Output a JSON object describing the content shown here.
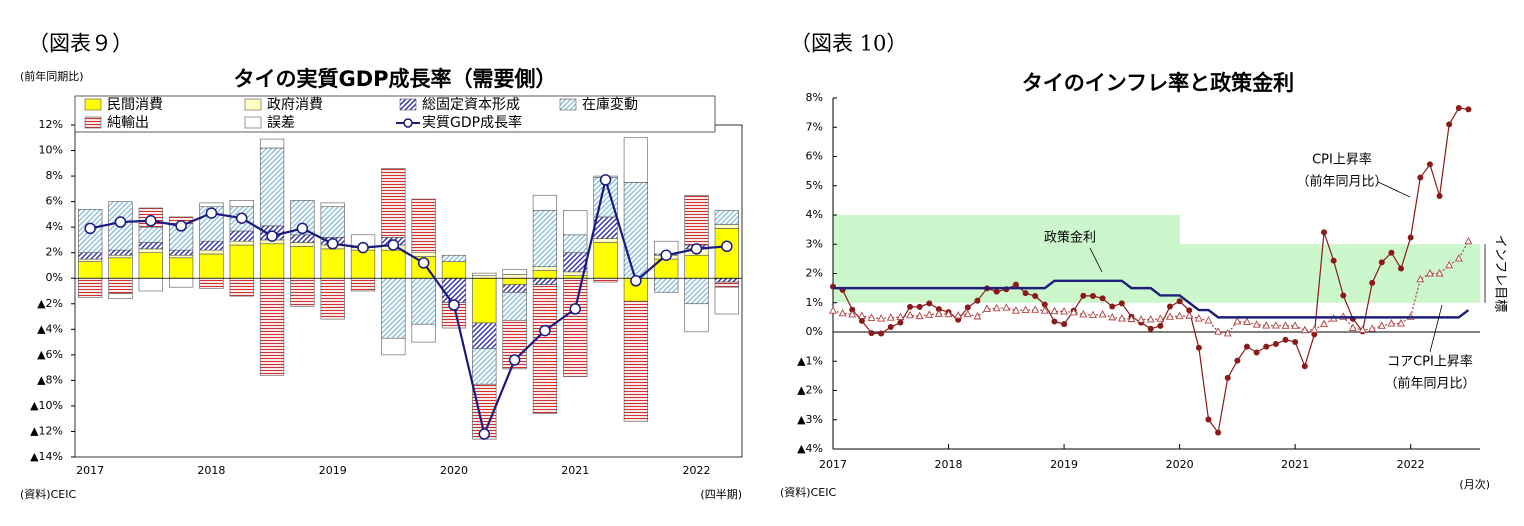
{
  "chart_data": [
    {
      "type": "bar",
      "stacked": true,
      "figure": "（図表９）",
      "title": "タイの実質GDP成長率（需要側）",
      "ylabel": "(前年同期比)",
      "xlabel": "(四半期)",
      "source": "(資料)CEIC",
      "legend": "top",
      "categories": [
        "2017",
        null,
        null,
        null,
        "2018",
        null,
        null,
        null,
        "2019",
        null,
        null,
        null,
        "2020",
        null,
        null,
        null,
        "2021",
        null,
        null,
        null,
        "2022",
        null
      ],
      "ylim": [
        -14,
        12
      ],
      "yticks": [
        {
          "value": 12,
          "label": "12%"
        },
        {
          "value": 10,
          "label": "10%"
        },
        {
          "value": 8,
          "label": "8%"
        },
        {
          "value": 6,
          "label": "6%"
        },
        {
          "value": 4,
          "label": "4%"
        },
        {
          "value": 2,
          "label": "2%"
        },
        {
          "value": 0,
          "label": "0%"
        },
        {
          "value": -2,
          "label": "▲2%"
        },
        {
          "value": -4,
          "label": "▲4%"
        },
        {
          "value": -6,
          "label": "▲6%"
        },
        {
          "value": -8,
          "label": "▲8%"
        },
        {
          "value": -10,
          "label": "▲10%"
        },
        {
          "value": -12,
          "label": "▲12%"
        },
        {
          "value": -14,
          "label": "▲14%"
        }
      ],
      "series": [
        {
          "name": "民間消費",
          "type": "bar",
          "color": "#ffff00",
          "pattern": "solid",
          "values": [
            1.3,
            1.6,
            2.0,
            1.6,
            1.9,
            2.6,
            2.7,
            2.5,
            2.3,
            2.2,
            2.2,
            1.7,
            1.3,
            -3.5,
            -0.5,
            0.6,
            0.2,
            2.8,
            -1.8,
            1.5,
            1.8,
            3.9
          ]
        },
        {
          "name": "政府消費",
          "type": "bar",
          "color": "#ffffc0",
          "pattern": "solid",
          "values": [
            0.2,
            0.2,
            0.3,
            0.2,
            0.3,
            0.3,
            0.3,
            0.3,
            0.3,
            0.2,
            0.4,
            0.3,
            0,
            0.2,
            0.3,
            0.3,
            0.3,
            0.3,
            0,
            0.3,
            0.5,
            0.3
          ]
        },
        {
          "name": "総固定資本形成",
          "type": "bar",
          "color": "#3030b0",
          "pattern": "diagonal",
          "values": [
            0.5,
            0.4,
            0.5,
            0.4,
            0.7,
            0.8,
            1.1,
            0.6,
            0.6,
            0.1,
            0.6,
            0,
            -1.9,
            -2.0,
            -0.6,
            -0.5,
            1.5,
            1.7,
            0,
            0.1,
            0.3,
            -0.3
          ]
        },
        {
          "name": "在庫変動",
          "type": "bar",
          "color": "#8cc0dc",
          "pattern": "diagonal",
          "values": [
            3.4,
            3.8,
            1.2,
            2.1,
            2.7,
            1.9,
            6.1,
            2.7,
            2.4,
            0,
            -4.7,
            -3.6,
            0.5,
            -2.8,
            -2.2,
            4.4,
            1.4,
            3.1,
            7.5,
            -1.1,
            -2.0,
            1.1
          ]
        },
        {
          "name": "純輸出",
          "type": "bar",
          "color": "#d03030",
          "pattern": "horizontal",
          "values": [
            -1.5,
            -1.2,
            1.5,
            0.5,
            -0.8,
            -1.4,
            -7.6,
            -2.2,
            -3.2,
            -1.0,
            5.4,
            4.2,
            -2.0,
            -4.3,
            -3.8,
            -10.1,
            -7.7,
            -0.3,
            -9.4,
            0,
            3.9,
            -0.4
          ]
        },
        {
          "name": "誤差",
          "type": "bar",
          "color": "#ffffff",
          "pattern": "solid",
          "values": [
            0,
            -0.4,
            -1.0,
            -0.7,
            0.3,
            0.5,
            0.7,
            0,
            0.3,
            0.9,
            -1.3,
            -1.4,
            0,
            0.2,
            0.4,
            1.2,
            1.9,
            0.1,
            3.5,
            1.0,
            -2.2,
            -2.1
          ]
        },
        {
          "name": "実質GDP成長率",
          "type": "line",
          "color": "#1a1a80",
          "values": [
            3.9,
            4.4,
            4.5,
            4.1,
            5.1,
            4.7,
            3.3,
            3.9,
            2.7,
            2.4,
            2.6,
            1.2,
            -2.1,
            -12.2,
            -6.4,
            -4.1,
            -2.4,
            7.7,
            -0.2,
            1.8,
            2.3,
            2.5
          ]
        }
      ]
    },
    {
      "type": "line",
      "figure": "（図表 10）",
      "title": "タイのインフレ率と政策金利",
      "xlabel": "(月次)",
      "source": "(資料)CEIC",
      "categories": [
        "2017",
        null,
        null,
        null,
        null,
        null,
        null,
        null,
        null,
        null,
        null,
        null,
        "2018",
        null,
        null,
        null,
        null,
        null,
        null,
        null,
        null,
        null,
        null,
        null,
        "2019",
        null,
        null,
        null,
        null,
        null,
        null,
        null,
        null,
        null,
        null,
        null,
        "2020",
        null,
        null,
        null,
        null,
        null,
        null,
        null,
        null,
        null,
        null,
        null,
        "2021",
        null,
        null,
        null,
        null,
        null,
        null,
        null,
        null,
        null,
        null,
        null,
        "2022",
        null,
        null,
        null,
        null,
        null,
        null
      ],
      "ylim": [
        -4,
        8
      ],
      "yticks": [
        {
          "value": 8,
          "label": "8%"
        },
        {
          "value": 7,
          "label": "7%"
        },
        {
          "value": 6,
          "label": "6%"
        },
        {
          "value": 5,
          "label": "5%"
        },
        {
          "value": 4,
          "label": "4%"
        },
        {
          "value": 3,
          "label": "3%"
        },
        {
          "value": 2,
          "label": "2%"
        },
        {
          "value": 1,
          "label": "1%"
        },
        {
          "value": 0,
          "label": "0%"
        },
        {
          "value": -1,
          "label": "▲1%"
        },
        {
          "value": -2,
          "label": "▲2%"
        },
        {
          "value": -3,
          "label": "▲3%"
        },
        {
          "value": -4,
          "label": "▲4%"
        }
      ],
      "target_band": {
        "name": "インフレ目標",
        "color": "#ccf7cc",
        "low": [
          1,
          1,
          1,
          1,
          1,
          1,
          1,
          1,
          1,
          1,
          1,
          1,
          1,
          1,
          1,
          1,
          1,
          1,
          1,
          1,
          1,
          1,
          1,
          1,
          1,
          1,
          1,
          1,
          1,
          1,
          1,
          1,
          1,
          1,
          1,
          1,
          1,
          1,
          1,
          1,
          1,
          1,
          1,
          1,
          1,
          1,
          1,
          1,
          1,
          1,
          1,
          1,
          1,
          1,
          1,
          1,
          1,
          1,
          1,
          1,
          1,
          1,
          1,
          1,
          1,
          1,
          1
        ],
        "high": [
          4,
          4,
          4,
          4,
          4,
          4,
          4,
          4,
          4,
          4,
          4,
          4,
          4,
          4,
          4,
          4,
          4,
          4,
          4,
          4,
          4,
          4,
          4,
          4,
          4,
          4,
          4,
          4,
          4,
          4,
          4,
          4,
          4,
          4,
          4,
          4,
          3,
          3,
          3,
          3,
          3,
          3,
          3,
          3,
          3,
          3,
          3,
          3,
          3,
          3,
          3,
          3,
          3,
          3,
          3,
          3,
          3,
          3,
          3,
          3,
          3,
          3,
          3,
          3,
          3,
          3,
          3
        ]
      },
      "series": [
        {
          "name": "CPI上昇率",
          "note": "（前年同月比）",
          "color": "#8b1a1a",
          "marker": "circle",
          "dash": "solid",
          "values": [
            1.55,
            1.44,
            0.76,
            0.38,
            -0.04,
            -0.05,
            0.17,
            0.32,
            0.86,
            0.86,
            0.98,
            0.78,
            0.68,
            0.42,
            0.84,
            1.07,
            1.49,
            1.38,
            1.46,
            1.62,
            1.33,
            1.23,
            0.94,
            0.36,
            0.27,
            0.73,
            1.24,
            1.23,
            1.15,
            0.87,
            0.98,
            0.52,
            0.32,
            0.11,
            0.21,
            0.87,
            1.05,
            0.74,
            -0.54,
            -2.99,
            -3.44,
            -1.57,
            -0.98,
            -0.5,
            -0.7,
            -0.5,
            -0.41,
            -0.27,
            -0.34,
            -1.17,
            -0.08,
            3.41,
            2.44,
            1.25,
            0.45,
            0.02,
            1.68,
            2.38,
            2.71,
            2.17,
            3.23,
            5.28,
            5.73,
            4.65,
            7.1,
            7.66,
            7.61
          ]
        },
        {
          "name": "コアCPI上昇率",
          "note": "（前年同月比）",
          "color": "#b04040",
          "marker": "triangle",
          "dash": "dotted",
          "values": [
            0.73,
            0.64,
            0.6,
            0.55,
            0.48,
            0.46,
            0.49,
            0.51,
            0.57,
            0.54,
            0.59,
            0.62,
            0.61,
            0.56,
            0.61,
            0.53,
            0.79,
            0.81,
            0.83,
            0.73,
            0.75,
            0.76,
            0.73,
            0.71,
            0.7,
            0.67,
            0.6,
            0.58,
            0.6,
            0.5,
            0.46,
            0.44,
            0.42,
            0.43,
            0.45,
            0.52,
            0.54,
            0.56,
            0.46,
            0.39,
            0.01,
            -0.05,
            0.36,
            0.34,
            0.25,
            0.22,
            0.22,
            0.21,
            0.21,
            0.06,
            0.08,
            0.27,
            0.46,
            0.52,
            0.14,
            0.07,
            0.11,
            0.21,
            0.29,
            0.29,
            0.52,
            1.8,
            2.0,
            2.0,
            2.28,
            2.51,
            3.1
          ]
        },
        {
          "name": "政策金利",
          "color": "#1f1f7a",
          "marker": "none",
          "dash": "solid",
          "values": [
            1.5,
            1.5,
            1.5,
            1.5,
            1.5,
            1.5,
            1.5,
            1.5,
            1.5,
            1.5,
            1.5,
            1.5,
            1.5,
            1.5,
            1.5,
            1.5,
            1.5,
            1.5,
            1.5,
            1.5,
            1.5,
            1.5,
            1.5,
            1.75,
            1.75,
            1.75,
            1.75,
            1.75,
            1.75,
            1.75,
            1.75,
            1.5,
            1.5,
            1.5,
            1.25,
            1.25,
            1.25,
            1.0,
            0.75,
            0.75,
            0.5,
            0.5,
            0.5,
            0.5,
            0.5,
            0.5,
            0.5,
            0.5,
            0.5,
            0.5,
            0.5,
            0.5,
            0.5,
            0.5,
            0.5,
            0.5,
            0.5,
            0.5,
            0.5,
            0.5,
            0.5,
            0.5,
            0.5,
            0.5,
            0.5,
            0.5,
            0.75
          ]
        }
      ]
    }
  ]
}
